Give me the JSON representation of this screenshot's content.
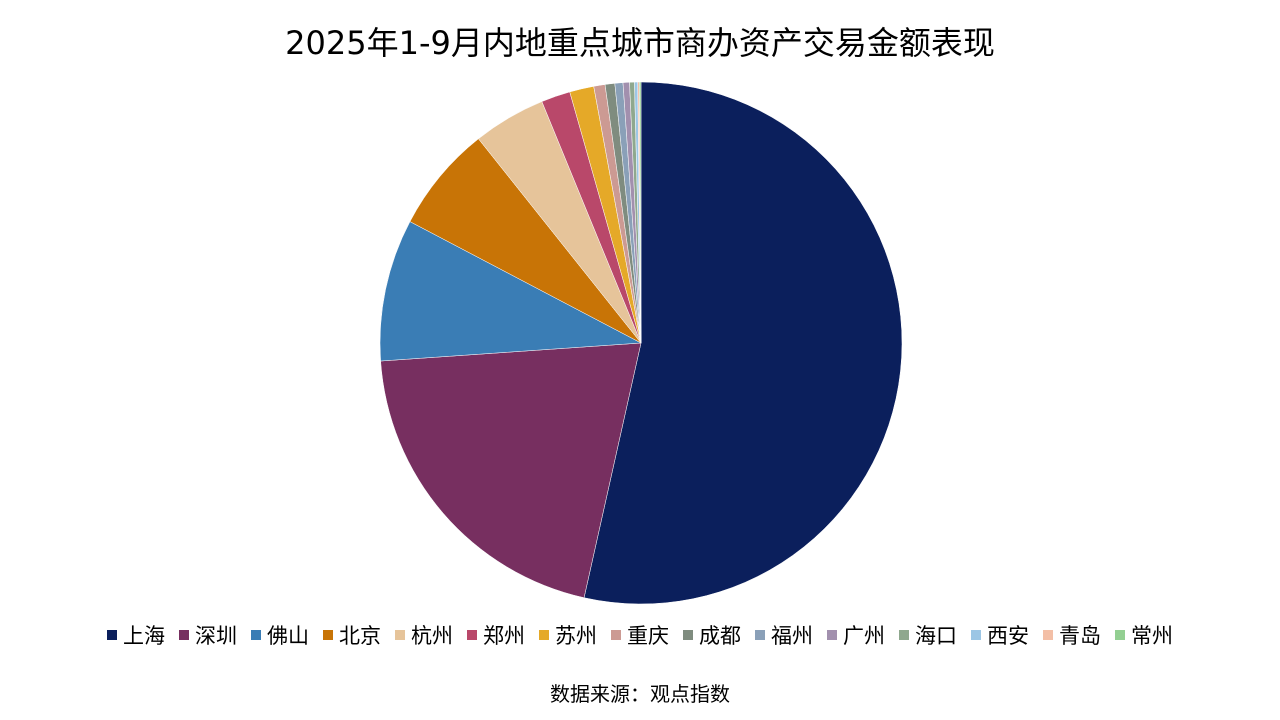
{
  "chart_data": {
    "type": "pie",
    "title": "2025年1-9月内地重点城市商办资产交易金额表现",
    "categories": [
      "上海",
      "深圳",
      "佛山",
      "北京",
      "杭州",
      "郑州",
      "苏州",
      "重庆",
      "成都",
      "福州",
      "广州",
      "海口",
      "西安",
      "青岛",
      "常州"
    ],
    "values": [
      53.5,
      20.4,
      8.8,
      6.6,
      4.5,
      1.8,
      1.5,
      0.7,
      0.6,
      0.5,
      0.4,
      0.3,
      0.2,
      0.1,
      0.1
    ],
    "colors": [
      "#0b1f5c",
      "#772f60",
      "#3a7db5",
      "#c87406",
      "#e6c49a",
      "#b9486a",
      "#e5a928",
      "#cc9a93",
      "#7f8c7f",
      "#8aa0b8",
      "#a290ae",
      "#8fa88e",
      "#9cc6e5",
      "#f3bfa6",
      "#93cf92"
    ],
    "source": "数据来源：观点指数"
  }
}
